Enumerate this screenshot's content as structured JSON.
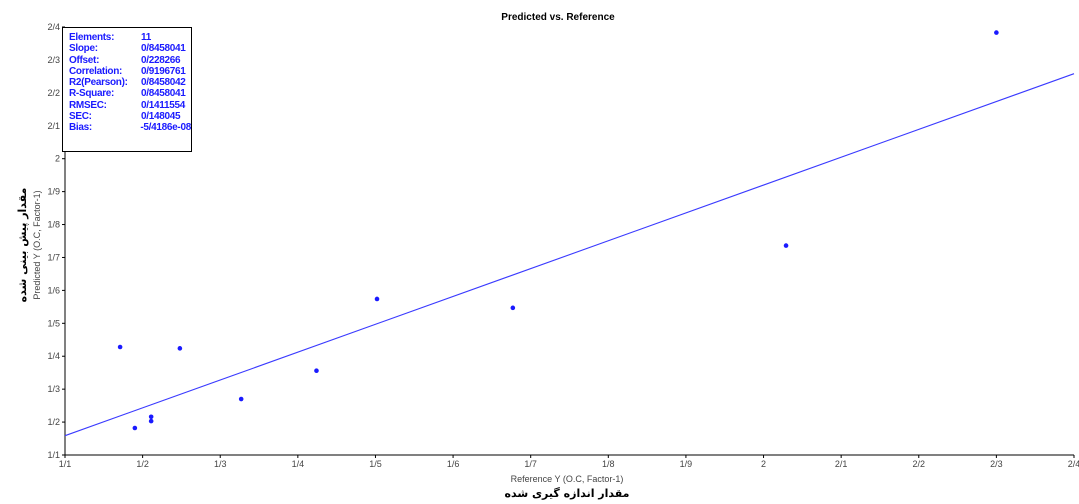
{
  "chart_data": {
    "type": "scatter",
    "title": "Predicted vs. Reference",
    "xlabel": "Reference Y (O.C, Factor-1)",
    "xlabel_fa": "مقدار اندازه گیری شده",
    "ylabel": "Predicted Y (O.C, Factor-1)",
    "ylabel_fa": "مقدار پیش بینی شده",
    "xlim": [
      1.1,
      2.4
    ],
    "ylim": [
      1.1,
      2.4
    ],
    "x_ticks": [
      "1/1",
      "1/2",
      "1/3",
      "1/4",
      "1/5",
      "1/6",
      "1/7",
      "1/8",
      "1/9",
      "2",
      "2/1",
      "2/2",
      "2/3",
      "2/4"
    ],
    "y_ticks": [
      "1/1",
      "1/2",
      "1/3",
      "1/4",
      "1/5",
      "1/6",
      "1/7",
      "1/8",
      "1/9",
      "2",
      "2/1",
      "2/2",
      "2/3",
      "2/4"
    ],
    "grid": false,
    "legend": "none",
    "point_color": "#1a1aff",
    "line_color": "#3a3aff",
    "points": [
      {
        "x": 1.171,
        "y": 1.428
      },
      {
        "x": 1.19,
        "y": 1.182
      },
      {
        "x": 1.211,
        "y": 1.216
      },
      {
        "x": 1.211,
        "y": 1.203
      },
      {
        "x": 1.248,
        "y": 1.424
      },
      {
        "x": 1.327,
        "y": 1.27
      },
      {
        "x": 1.424,
        "y": 1.356
      },
      {
        "x": 1.502,
        "y": 1.574
      },
      {
        "x": 1.677,
        "y": 1.547
      },
      {
        "x": 2.029,
        "y": 1.736
      },
      {
        "x": 2.3,
        "y": 2.383
      }
    ],
    "regression_line": {
      "slope": 0.8458041,
      "offset": 0.228266
    },
    "stats": [
      {
        "label": "Elements:",
        "value": "11"
      },
      {
        "label": "Slope:",
        "value": "0/8458041"
      },
      {
        "label": "Offset:",
        "value": "0/228266"
      },
      {
        "label": "Correlation:",
        "value": "0/9196761"
      },
      {
        "label": "R2(Pearson):",
        "value": "0/8458042"
      },
      {
        "label": "R-Square:",
        "value": "0/8458041"
      },
      {
        "label": "RMSEC:",
        "value": "0/1411554"
      },
      {
        "label": "SEC:",
        "value": "0/148045"
      },
      {
        "label": "Bias:",
        "value": "-5/4186e-08"
      }
    ]
  }
}
